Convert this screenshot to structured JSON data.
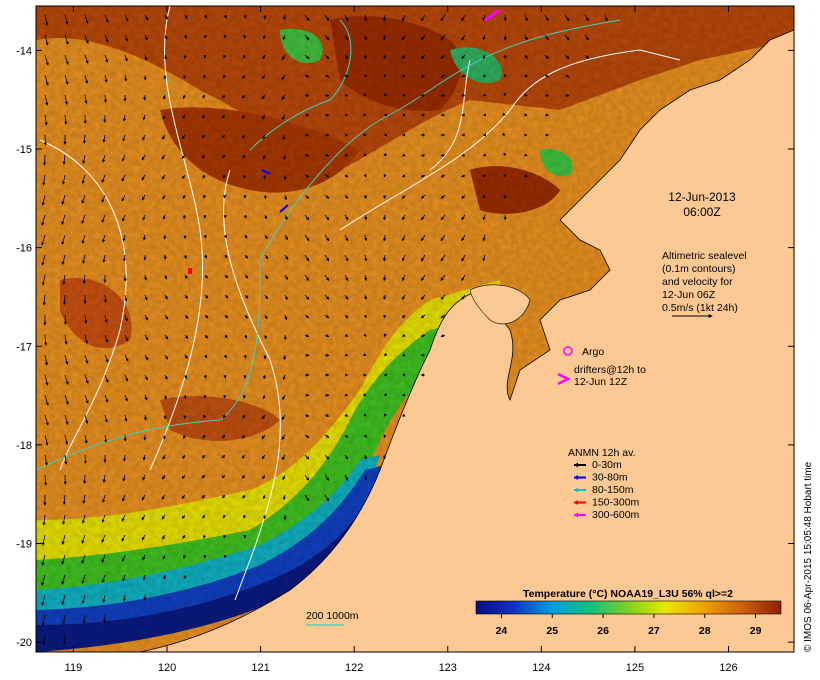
{
  "map": {
    "datetime_line1": "12-Jun-2013",
    "datetime_line2": "06:00Z",
    "altimetry_legend": [
      "Altimetric sealevel",
      "(0.1m contours)",
      "and velocity for",
      "12-Jun 06Z",
      "0.5m/s (1kt 24h)"
    ],
    "argo_label": "Argo",
    "drifters_label": [
      "drifters@12h to",
      "12-Jun 12Z"
    ],
    "anmn_title": "ANMN 12h av.",
    "anmn_items": [
      {
        "label": "0-30m",
        "color": "#000000"
      },
      {
        "label": "30-80m",
        "color": "#0000ff"
      },
      {
        "label": "80-150m",
        "color": "#00c8c8"
      },
      {
        "label": "150-300m",
        "color": "#ff0000"
      },
      {
        "label": "300-600m",
        "color": "#ff00ff"
      }
    ],
    "isobath_label": "200  1000m",
    "colorbar_title": "Temperature (°C) NOAA19_L3U 56% ql>=2",
    "colorbar_ticks": [
      "24",
      "25",
      "26",
      "27",
      "28",
      "29"
    ],
    "colorbar_range": [
      23.5,
      29.5
    ],
    "credit": "© IMOS 06-Apr-2015 15:05:48 Hobart time",
    "x_ticks": [
      "119",
      "120",
      "121",
      "122",
      "123",
      "124",
      "125",
      "126"
    ],
    "y_ticks": [
      "-14",
      "-15",
      "-16",
      "-17",
      "-18",
      "-19",
      "-20"
    ],
    "lon_range": [
      118.6,
      126.7
    ],
    "lat_range": [
      -20.1,
      -13.55
    ],
    "colors": {
      "land": "#fcc994",
      "cold": "#0a1a80",
      "warm": "#a03000"
    }
  }
}
